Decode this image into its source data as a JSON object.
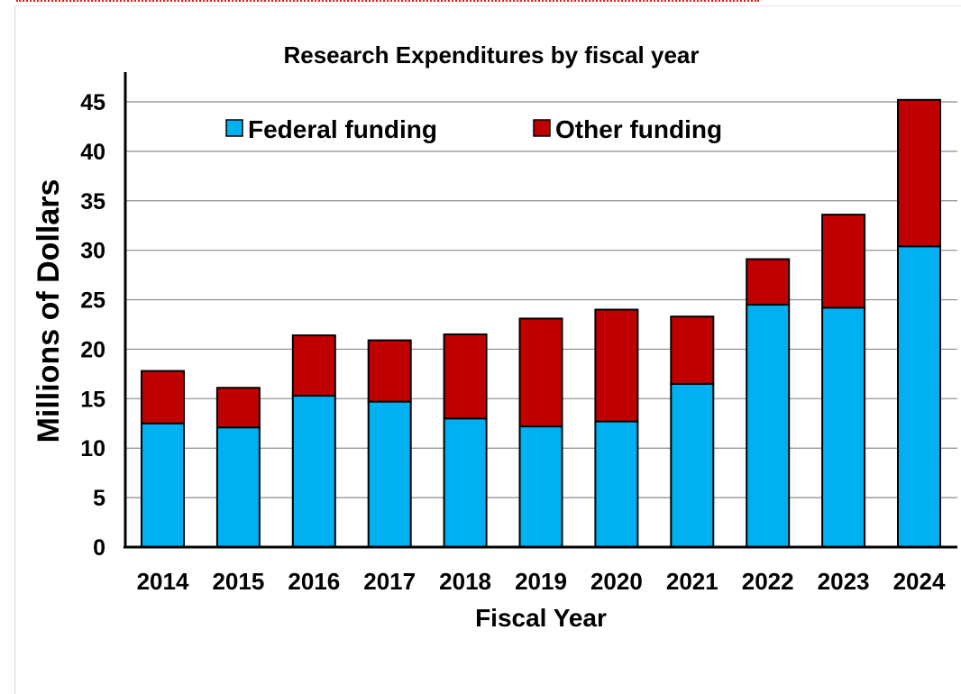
{
  "chart_data": {
    "type": "bar",
    "stacked": true,
    "title": "Research Expenditures by fiscal year",
    "xlabel": "Fiscal Year",
    "ylabel": "Millions of Dollars",
    "ylim": [
      0,
      45
    ],
    "yticks": [
      0,
      5,
      10,
      15,
      20,
      25,
      30,
      35,
      40,
      45
    ],
    "grid": true,
    "legend_position": "top",
    "categories": [
      "2014",
      "2015",
      "2016",
      "2017",
      "2018",
      "2019",
      "2020",
      "2021",
      "2022",
      "2023",
      "2024"
    ],
    "series": [
      {
        "name": "Federal funding",
        "color": "#00b0f0",
        "values": [
          12.5,
          12.1,
          15.3,
          14.7,
          13.0,
          12.2,
          12.7,
          16.5,
          24.5,
          24.2,
          30.4
        ]
      },
      {
        "name": "Other funding",
        "color": "#c00000",
        "values": [
          5.3,
          4.0,
          6.1,
          6.2,
          8.5,
          10.9,
          11.3,
          6.8,
          4.6,
          9.4,
          14.8
        ]
      }
    ]
  }
}
